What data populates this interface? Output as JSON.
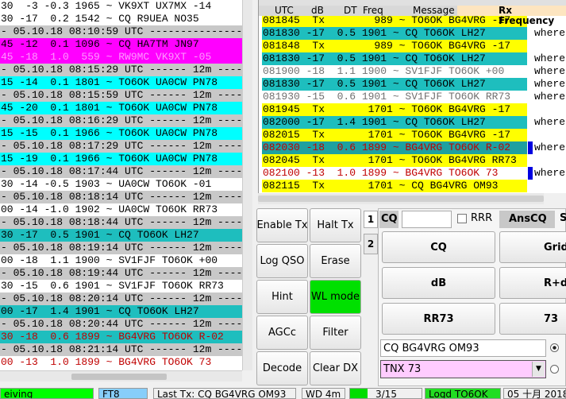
{
  "band_activity": {
    "rows": [
      {
        "text": "30  -3 -0.3 1965 ~ VK9XT UX7MX -14",
        "bg": "#ffffff"
      },
      {
        "text": "30 -17  0.2 1542 ~ CQ R9UEA NO35",
        "bg": "#ffffff"
      },
      {
        "text": "- 05.10.18 08:10:59 UTC -----------------",
        "bg": "#c8c8c8"
      },
      {
        "text": "45 -12  0.1 1096 ~ CQ HA7TM JN97",
        "bg": "#ff00ff"
      },
      {
        "text": "45 -18  1.0  559 ~ RW9MC VK9XT -05",
        "bg": "#ff00ff",
        "fg": "#ff99ff"
      },
      {
        "text": "- 05.10.18 08:15:29 UTC ------ 12m ------",
        "bg": "#c8c8c8"
      },
      {
        "text": "15 -14  0.1 1801 ~ TO6OK UA0CW PN78",
        "bg": "#00ffff"
      },
      {
        "text": "- 05.10.18 08:15:59 UTC ------ 12m ------",
        "bg": "#c8c8c8"
      },
      {
        "text": "45 -20  0.1 1801 ~ TO6OK UA0CW PN78",
        "bg": "#00ffff"
      },
      {
        "text": "- 05.10.18 08:16:29 UTC ------ 12m ------",
        "bg": "#c8c8c8"
      },
      {
        "text": "15 -15  0.1 1966 ~ TO6OK UA0CW PN78",
        "bg": "#00ffff"
      },
      {
        "text": "- 05.10.18 08:17:29 UTC ------ 12m ------",
        "bg": "#c8c8c8"
      },
      {
        "text": "15 -19  0.1 1966 ~ TO6OK UA0CW PN78",
        "bg": "#00ffff"
      },
      {
        "text": "- 05.10.18 08:17:44 UTC ------ 12m ------",
        "bg": "#c8c8c8"
      },
      {
        "text": "30 -14 -0.5 1903 ~ UA0CW TO6OK -01",
        "bg": "#ffffff"
      },
      {
        "text": "- 05.10.18 08:18:14 UTC ------ 12m ------",
        "bg": "#c8c8c8"
      },
      {
        "text": "00 -14 -1.0 1902 ~ UA0CW TO6OK RR73",
        "bg": "#ffffff"
      },
      {
        "text": "- 05.10.18 08:18:44 UTC ------ 12m ------",
        "bg": "#c8c8c8"
      },
      {
        "text": "30 -17  0.5 1901 ~ CQ TO6OK LH27",
        "bg": "#1ebebe"
      },
      {
        "text": "- 05.10.18 08:19:14 UTC ------ 12m ------",
        "bg": "#c8c8c8"
      },
      {
        "text": "00 -18  1.1 1900 ~ SV1FJF TO6OK +00",
        "bg": "#ffffff"
      },
      {
        "text": "- 05.10.18 08:19:44 UTC ------ 12m ------",
        "bg": "#c8c8c8"
      },
      {
        "text": "30 -15  0.6 1901 ~ SV1FJF TO6OK RR73",
        "bg": "#ffffff"
      },
      {
        "text": "- 05.10.18 08:20:14 UTC ------ 12m ------",
        "bg": "#c8c8c8"
      },
      {
        "text": "00 -17  1.4 1901 ~ CQ TO6OK LH27",
        "bg": "#1ebebe"
      },
      {
        "text": "- 05.10.18 08:20:44 UTC ------ 12m ------",
        "bg": "#c8c8c8"
      },
      {
        "text": "30 -18  0.6 1899 ~ BG4VRG TO6OK R-02",
        "bg": "#1ebebe",
        "fg": "#c00000"
      },
      {
        "text": "- 05.10.18 08:21:14 UTC ------ 12m ------",
        "bg": "#c8c8c8"
      },
      {
        "text": "00 -13  1.0 1899 ~ BG4VRG TO6OK 73",
        "bg": "#ffffff",
        "fg": "#c00000"
      }
    ]
  },
  "rx_frequency": {
    "header": {
      "utc": "UTC",
      "db": "dB",
      "dt": "DT",
      "freq": "Freq",
      "message": "Message",
      "title": "Rx Frequency"
    },
    "rows": [
      {
        "text": "081845  Tx        989 ~ TO6OK BG4VRG -17",
        "bg": "#ffff00"
      },
      {
        "text": "081830 -17  0.5 1901 ~ CQ TO6OK LH27",
        "bg": "#1ebebe",
        "note": "where"
      },
      {
        "text": "081848  Tx        989 ~ TO6OK BG4VRG -17",
        "bg": "#ffff00"
      },
      {
        "text": "081830 -17  0.5 1901 ~ CQ TO6OK LH27",
        "bg": "#1ebebe",
        "note": "where"
      },
      {
        "text": "081900 -18  1.1 1900 ~ SV1FJF TO6OK +00",
        "bg": "#ffffff",
        "fg": "#707070",
        "note": "where"
      },
      {
        "text": "081830 -17  0.5 1901 ~ CQ TO6OK LH27",
        "bg": "#1ebebe",
        "note": "where"
      },
      {
        "text": "081930 -15  0.6 1901 ~ SV1FJF TO6OK RR73",
        "bg": "#ffffff",
        "fg": "#707070",
        "note": "where"
      },
      {
        "text": "081945  Tx       1701 ~ TO6OK BG4VRG -17",
        "bg": "#ffff00"
      },
      {
        "text": "082000 -17  1.4 1901 ~ CQ TO6OK LH27",
        "bg": "#1ebebe",
        "note": "where"
      },
      {
        "text": "082015  Tx       1701 ~ TO6OK BG4VRG -17",
        "bg": "#ffff00"
      },
      {
        "text": "082030 -18  0.6 1899 ~ BG4VRG TO6OK R-02",
        "bg": "#1ea0a0",
        "fg": "#c00000",
        "note": "where",
        "marker": "#0000e0"
      },
      {
        "text": "082045  Tx       1701 ~ TO6OK BG4VRG RR73",
        "bg": "#ffff00"
      },
      {
        "text": "082100 -13  1.0 1899 ~ BG4VRG TO6OK 73",
        "bg": "#ffffff",
        "fg": "#c00000",
        "note": "where",
        "marker": "#0000e0"
      },
      {
        "text": "082115  Tx       1701 ~ CQ BG4VRG OM93",
        "bg": "#ffff00"
      }
    ]
  },
  "buttons": [
    "Enable Tx",
    "Halt Tx",
    "Log QSO",
    "Erase",
    "Hint",
    "WL mode",
    "AGCc",
    "Filter",
    "Decode",
    "Clear DX"
  ],
  "tabs": [
    "1",
    "2"
  ],
  "tab1": {
    "cq_label": "CQ",
    "rrr": "RRR",
    "anscq": "AnsCQ",
    "s": "S",
    "buttons": [
      "CQ",
      "Grid",
      "dB",
      "R+dB",
      "RR73",
      "73"
    ],
    "tx_message": "CQ BG4VRG OM93",
    "tx_select": "TNX 73"
  },
  "status": [
    "eiving",
    "FT8",
    "Last Tx: CQ BG4VRG OM93",
    "WD 4m",
    "3/15",
    "Logd TO6OK",
    "05 十月 2018"
  ]
}
